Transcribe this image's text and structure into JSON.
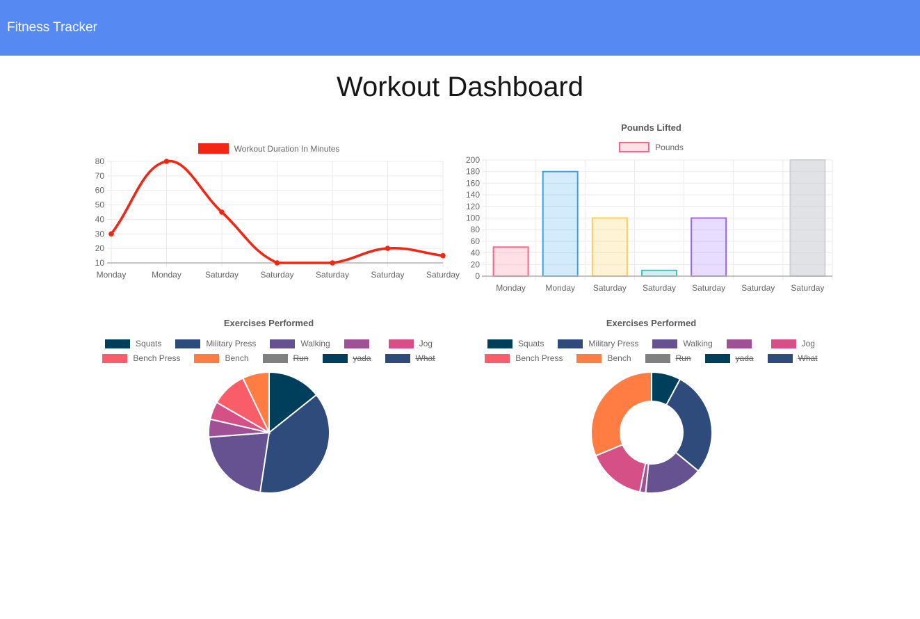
{
  "header": {
    "title": "Fitness Tracker",
    "bg_color": "#568af2"
  },
  "page_title": "Workout Dashboard",
  "chart_data": [
    {
      "type": "line",
      "title": "",
      "legend": [
        {
          "label": "Workout Duration In Minutes",
          "fill": "#f22613",
          "border": "#f22613"
        }
      ],
      "legend_position": "top",
      "categories": [
        "Monday",
        "Monday",
        "Saturday",
        "Saturday",
        "Saturday",
        "Saturday",
        "Saturday"
      ],
      "series": [
        {
          "name": "Workout Duration In Minutes",
          "values": [
            30,
            80,
            45,
            10,
            10,
            20,
            15
          ]
        }
      ],
      "line_color": "#f22613",
      "point_color": "#f22613",
      "fill": false,
      "grid": true,
      "ylim": [
        10,
        80
      ],
      "y_ticks": [
        80,
        70,
        60,
        50,
        40,
        30,
        20,
        10
      ]
    },
    {
      "type": "bar",
      "title": "Pounds Lifted",
      "legend": [
        {
          "label": "Pounds",
          "fill": "rgba(255,99,132,0.2)",
          "border": "#ff6384"
        }
      ],
      "legend_position": "top",
      "categories": [
        "Monday",
        "Monday",
        "Saturday",
        "Saturday",
        "Saturday",
        "Saturday",
        "Saturday"
      ],
      "series": [
        {
          "name": "Pounds",
          "values": [
            50,
            180,
            100,
            10,
            100,
            0,
            200
          ]
        }
      ],
      "bar_fills": [
        "rgba(255,99,132,0.2)",
        "rgba(54,162,235,0.22)",
        "rgba(255,206,86,0.25)",
        "rgba(75,192,192,0.25)",
        "rgba(153,102,255,0.22)",
        "rgba(255,159,64,0.2)",
        "rgba(201,203,207,0.55)"
      ],
      "bar_borders": [
        "#ff6384",
        "#36a2eb",
        "#ffce56",
        "#4bc0c0",
        "#9966ff",
        "#ff9f40",
        "#cfd1d5"
      ],
      "grid": true,
      "ylim": [
        0,
        200
      ],
      "y_ticks": [
        200,
        180,
        160,
        140,
        120,
        100,
        80,
        60,
        40,
        20,
        0
      ]
    },
    {
      "type": "pie",
      "title": "Exercises Performed",
      "legend_position": "top",
      "labels": [
        "Squats",
        "Military Press",
        "Walking",
        "",
        "Jog",
        "Bench Press",
        "Bench",
        "Run",
        "yada",
        "What"
      ],
      "values": [
        30,
        80,
        45,
        10,
        10,
        20,
        15,
        null,
        null,
        null
      ],
      "colors": [
        "#003f5c",
        "#2f4b7c",
        "#665191",
        "#a05195",
        "#d45087",
        "#f95d6a",
        "#ff7c43",
        "#808080",
        "#003f5c",
        "#2f4b7c"
      ],
      "hidden": [
        false,
        false,
        false,
        false,
        false,
        false,
        false,
        true,
        true,
        true
      ]
    },
    {
      "type": "doughnut",
      "title": "Exercises Performed",
      "legend_position": "top",
      "labels": [
        "Squats",
        "Military Press",
        "Walking",
        "",
        "Jog",
        "Bench Press",
        "Bench",
        "Run",
        "yada",
        "What"
      ],
      "values": [
        50,
        180,
        100,
        10,
        100,
        0,
        200,
        null,
        null,
        null
      ],
      "colors": [
        "#003f5c",
        "#2f4b7c",
        "#665191",
        "#a05195",
        "#d45087",
        "#f95d6a",
        "#ff7c43",
        "#808080",
        "#003f5c",
        "#2f4b7c"
      ],
      "hidden": [
        false,
        false,
        false,
        false,
        false,
        false,
        false,
        true,
        true,
        true
      ]
    }
  ]
}
